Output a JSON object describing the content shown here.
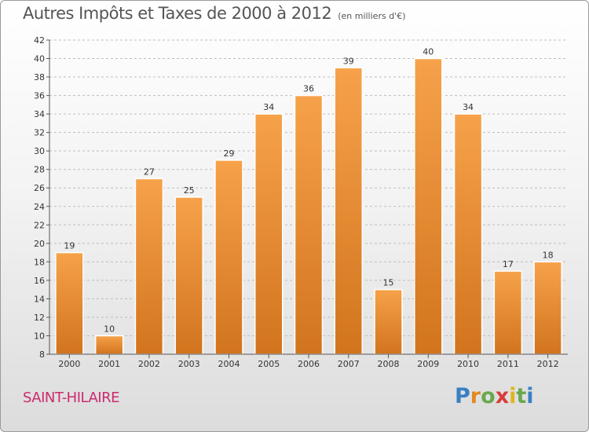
{
  "chart_data": {
    "type": "bar",
    "title": "Autres Impôts et Taxes de 2000 à 2012",
    "subtitle": "(en milliers d'€)",
    "xlabel": "",
    "ylabel": "",
    "categories": [
      "2000",
      "2001",
      "2002",
      "2003",
      "2004",
      "2005",
      "2006",
      "2007",
      "2008",
      "2009",
      "2010",
      "2011",
      "2012"
    ],
    "values": [
      19,
      10,
      27,
      25,
      29,
      34,
      36,
      39,
      15,
      40,
      34,
      17,
      18
    ],
    "ylim": [
      8,
      42
    ],
    "yticks": [
      8,
      10,
      12,
      14,
      16,
      18,
      20,
      22,
      24,
      26,
      28,
      30,
      32,
      34,
      36,
      38,
      40,
      42
    ],
    "grid": "dashed horizontal",
    "legend": "none",
    "bar_color": "#f39a3e",
    "bar_color_dark": "#d2741e"
  },
  "footer": {
    "commune": "SAINT-HILAIRE",
    "brand_letters": [
      {
        "char": "P",
        "color": "#3a7fc4"
      },
      {
        "char": "r",
        "color": "#e28a1f"
      },
      {
        "char": "o",
        "color": "#6aa84f"
      },
      {
        "char": "x",
        "color": "#d93b3b"
      },
      {
        "char": "i",
        "color": "#e0b51c"
      },
      {
        "char": "t",
        "color": "#6aa84f"
      },
      {
        "char": "i",
        "color": "#3a7fc4"
      }
    ]
  }
}
